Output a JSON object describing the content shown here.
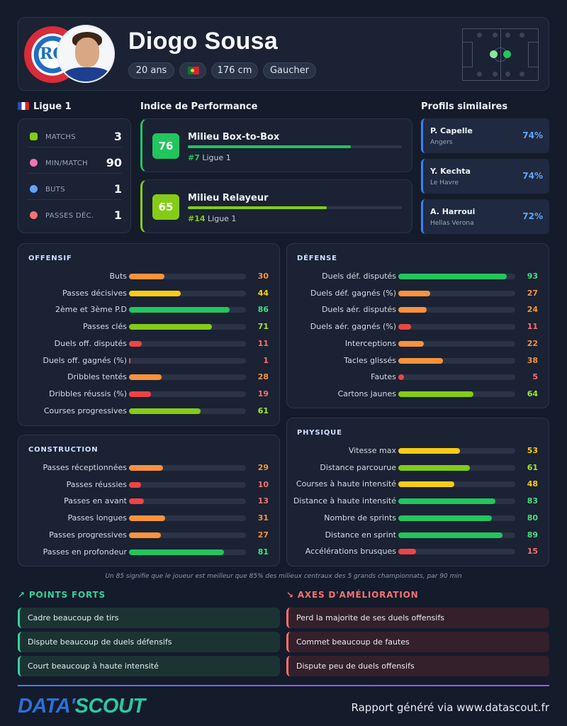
{
  "player": {
    "name": "Diogo Sousa",
    "age": "20 ans",
    "height": "176 cm",
    "foot": "Gaucher",
    "flag_icon": "portugal-flag-icon",
    "club_logo_text": "RC",
    "club_logo_lettering": "RACING CLUB ALSACE"
  },
  "league": {
    "name": "Ligue 1",
    "flag_icon": "france-flag-icon",
    "stats": [
      {
        "label": "MATCHS",
        "value": "3",
        "icon": "jersey-icon",
        "color": "#84cc16"
      },
      {
        "label": "MIN/MATCH",
        "value": "90",
        "icon": "stopwatch-icon",
        "color": "#f472b6"
      },
      {
        "label": "BUTS",
        "value": "1",
        "icon": "football-icon",
        "color": "#60a5fa"
      },
      {
        "label": "PASSES DÉC.",
        "value": "1",
        "icon": "target-icon",
        "color": "#f87171"
      }
    ]
  },
  "performance": {
    "title": "Indice de Performance",
    "items": [
      {
        "score": "76",
        "role": "Milieu Box-to-Box",
        "rank": "#7",
        "league": "Ligue 1",
        "fill": 0.76,
        "color": "#22c55e"
      },
      {
        "score": "65",
        "role": "Milieu Relayeur",
        "rank": "#14",
        "league": "Ligue 1",
        "fill": 0.65,
        "color": "#84cc16"
      }
    ]
  },
  "similar": {
    "title": "Profils similaires",
    "items": [
      {
        "name": "P. Capelle",
        "club": "Angers",
        "pct": "74%"
      },
      {
        "name": "Y. Kechta",
        "club": "Le Havre",
        "pct": "74%"
      },
      {
        "name": "A. Harroui",
        "club": "Hellas Verona",
        "pct": "72%"
      }
    ]
  },
  "panels": {
    "offensif": {
      "title": "OFFENSIF",
      "rows": [
        {
          "label": "Buts",
          "value": 30
        },
        {
          "label": "Passes décisives",
          "value": 44
        },
        {
          "label": "2ème et 3ème P.D",
          "value": 86
        },
        {
          "label": "Passes clés",
          "value": 71
        },
        {
          "label": "Duels off. disputés",
          "value": 11
        },
        {
          "label": "Duels off. gagnés (%)",
          "value": 1
        },
        {
          "label": "Dribbles tentés",
          "value": 28
        },
        {
          "label": "Dribbles réussis (%)",
          "value": 19
        },
        {
          "label": "Courses progressives",
          "value": 61
        }
      ]
    },
    "defense": {
      "title": "DÉFENSE",
      "rows": [
        {
          "label": "Duels déf. disputés",
          "value": 93
        },
        {
          "label": "Duels déf. gagnés (%)",
          "value": 27
        },
        {
          "label": "Duels aér. disputés",
          "value": 24
        },
        {
          "label": "Duels aér. gagnés (%)",
          "value": 11
        },
        {
          "label": "Interceptions",
          "value": 22
        },
        {
          "label": "Tacles glissés",
          "value": 38
        },
        {
          "label": "Fautes",
          "value": 5
        },
        {
          "label": "Cartons jaunes",
          "value": 64
        }
      ]
    },
    "construction": {
      "title": "CONSTRUCTION",
      "rows": [
        {
          "label": "Passes réceptionnées",
          "value": 29
        },
        {
          "label": "Passes réussies",
          "value": 10
        },
        {
          "label": "Passes en avant",
          "value": 13
        },
        {
          "label": "Passes longues",
          "value": 31
        },
        {
          "label": "Passes progressives",
          "value": 27
        },
        {
          "label": "Passes en profondeur",
          "value": 81
        }
      ]
    },
    "physique": {
      "title": "PHYSIQUE",
      "rows": [
        {
          "label": "Vitesse max",
          "value": 53
        },
        {
          "label": "Distance parcourue",
          "value": 61
        },
        {
          "label": "Courses à haute intensité",
          "value": 48
        },
        {
          "label": "Distance à haute intensité",
          "value": 83
        },
        {
          "label": "Nombre de sprints",
          "value": 80
        },
        {
          "label": "Distance en sprint",
          "value": 89
        },
        {
          "label": "Accélérations brusques",
          "value": 15
        }
      ]
    }
  },
  "footnote": "Un 85 signifie que le joueur est meilleur que 85% des milieux centraux des 5 grands championnats, par 90 min",
  "strengths": {
    "title": "POINTS FORTS",
    "icon": "trend-up-icon",
    "items": [
      "Cadre beaucoup de tirs",
      "Dispute beaucoup de duels défensifs",
      "Court beaucoup à haute intensité"
    ]
  },
  "improvements": {
    "title": "AXES D'AMÉLIORATION",
    "icon": "trend-down-icon",
    "items": [
      "Perd la majorite de ses duels offensifs",
      "Commet beaucoup de fautes",
      "Dispute peu de duels offensifs"
    ]
  },
  "footer": {
    "logo_part1": "DATA'",
    "logo_part2": "SCOUT",
    "generated": "Rapport généré via www.datascout.fr"
  },
  "colors": {
    "accent_blue": "#60a5fa",
    "good": "#22c55e",
    "bad": "#ef4444"
  }
}
